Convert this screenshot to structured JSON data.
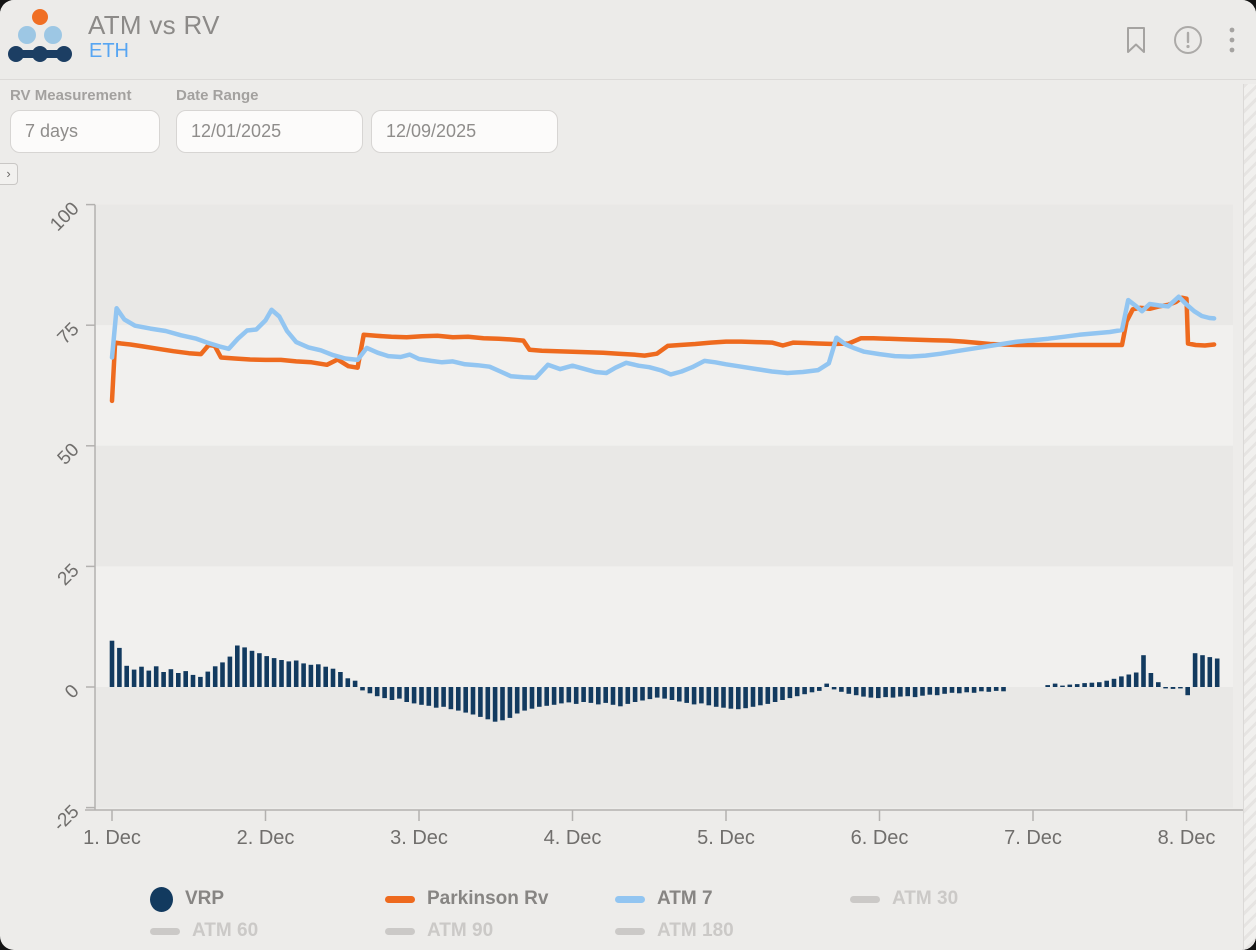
{
  "header": {
    "title": "ATM vs RV",
    "subtitle": "ETH"
  },
  "filters": {
    "rv_measurement": {
      "label": "RV Measurement",
      "value": "7 days"
    },
    "date_range": {
      "label": "Date Range",
      "start": "12/01/2025",
      "end": "12/09/2025"
    }
  },
  "collapse_arrow": "›",
  "colors": {
    "navy": "#123A5F",
    "orange": "#EE6A1E",
    "light_blue": "#92C5F1",
    "inactive_gray": "#CBC9C7",
    "band_dark": "#E9E8E6",
    "band_light": "#F1F0EE",
    "axis_line": "#B3B1AF",
    "tick_text": "#706E6C",
    "legend_active_text": "#878583",
    "legend_inactive_text": "#CBC9C7",
    "logo_orange": "#F06F24",
    "logo_blue": "#9DC7E4",
    "logo_navy": "#1C3E63",
    "icon_gray": "#A5A3A1"
  },
  "chart_data": {
    "type": "mixed",
    "title": "ATM vs RV",
    "x_ticks": [
      {
        "day": 1,
        "label": "1. Dec"
      },
      {
        "day": 2,
        "label": "2. Dec"
      },
      {
        "day": 3,
        "label": "3. Dec"
      },
      {
        "day": 4,
        "label": "4. Dec"
      },
      {
        "day": 5,
        "label": "5. Dec"
      },
      {
        "day": 6,
        "label": "6. Dec"
      },
      {
        "day": 7,
        "label": "7. Dec"
      },
      {
        "day": 8,
        "label": "8. Dec"
      }
    ],
    "y_ticks": [
      100,
      75,
      50,
      25,
      0,
      -25
    ],
    "ylim": [
      -25,
      100
    ],
    "xlim_days": [
      0.95,
      8.3
    ],
    "grid_bands": true,
    "series": [
      {
        "name": "VRP",
        "type": "bar",
        "color": "#123A5F",
        "start_day": 1.0,
        "day_step": 0.048,
        "values": [
          9.6,
          8.1,
          4.4,
          3.6,
          4.2,
          3.4,
          4.3,
          3.1,
          3.7,
          2.9,
          3.3,
          2.5,
          2.1,
          3.2,
          4.3,
          5.1,
          6.3,
          8.6,
          8.2,
          7.5,
          7.0,
          6.4,
          6.0,
          5.6,
          5.3,
          5.5,
          4.9,
          4.6,
          4.7,
          4.2,
          3.8,
          3.1,
          1.8,
          1.3,
          -0.7,
          -1.3,
          -1.9,
          -2.3,
          -2.7,
          -2.4,
          -3.1,
          -3.4,
          -3.7,
          -3.9,
          -4.3,
          -4.1,
          -4.6,
          -4.9,
          -5.3,
          -5.7,
          -6.2,
          -6.7,
          -7.2,
          -6.9,
          -6.4,
          -5.5,
          -4.9,
          -4.5,
          -4.1,
          -3.9,
          -3.7,
          -3.4,
          -3.2,
          -3.5,
          -3.1,
          -3.3,
          -3.6,
          -3.3,
          -3.7,
          -4.0,
          -3.5,
          -3.1,
          -2.8,
          -2.5,
          -2.2,
          -2.4,
          -2.7,
          -3.0,
          -3.3,
          -3.6,
          -3.4,
          -3.8,
          -4.1,
          -4.3,
          -4.5,
          -4.6,
          -4.4,
          -4.1,
          -3.8,
          -3.5,
          -3.1,
          -2.7,
          -2.3,
          -1.9,
          -1.5,
          -1.1,
          -0.8,
          0.7,
          -0.5,
          -1.0,
          -1.4,
          -1.7,
          -2.0,
          -2.2,
          -2.3,
          -2.1,
          -2.2,
          -2.0,
          -1.9,
          -2.1,
          -1.8,
          -1.6,
          -1.7,
          -1.4,
          -1.2,
          -1.3,
          -1.1,
          -1.2,
          -0.9,
          -1.0,
          -0.8,
          -0.9,
          null,
          null,
          null,
          null,
          null,
          0.4,
          0.7,
          0.3,
          0.5,
          0.6,
          0.8,
          0.9,
          1.0,
          1.3,
          1.7,
          2.2,
          2.6,
          3.0,
          6.6,
          2.9,
          1.0,
          -0.3,
          -0.4,
          -0.3,
          -1.7,
          7.0,
          6.6,
          6.2,
          5.9
        ]
      },
      {
        "name": "Parkinson Rv",
        "type": "line",
        "color": "#EE6A1E",
        "points": [
          [
            1.0,
            59.3
          ],
          [
            1.02,
            71.4
          ],
          [
            1.06,
            71.2
          ],
          [
            1.12,
            71.0
          ],
          [
            1.2,
            70.6
          ],
          [
            1.3,
            70.1
          ],
          [
            1.4,
            69.6
          ],
          [
            1.5,
            69.2
          ],
          [
            1.58,
            69.0
          ],
          [
            1.63,
            70.9
          ],
          [
            1.67,
            70.7
          ],
          [
            1.71,
            68.3
          ],
          [
            1.8,
            68.1
          ],
          [
            1.9,
            67.9
          ],
          [
            2.0,
            67.8
          ],
          [
            2.1,
            67.8
          ],
          [
            2.2,
            67.5
          ],
          [
            2.3,
            67.3
          ],
          [
            2.4,
            66.8
          ],
          [
            2.47,
            67.9
          ],
          [
            2.54,
            66.5
          ],
          [
            2.6,
            66.2
          ],
          [
            2.64,
            73.0
          ],
          [
            2.72,
            72.8
          ],
          [
            2.82,
            72.6
          ],
          [
            2.92,
            72.5
          ],
          [
            3.02,
            72.7
          ],
          [
            3.12,
            72.8
          ],
          [
            3.22,
            72.5
          ],
          [
            3.32,
            72.6
          ],
          [
            3.42,
            72.3
          ],
          [
            3.52,
            72.2
          ],
          [
            3.62,
            72.0
          ],
          [
            3.68,
            71.8
          ],
          [
            3.72,
            69.9
          ],
          [
            3.8,
            69.7
          ],
          [
            3.9,
            69.6
          ],
          [
            4.0,
            69.5
          ],
          [
            4.1,
            69.4
          ],
          [
            4.2,
            69.3
          ],
          [
            4.3,
            69.1
          ],
          [
            4.4,
            68.9
          ],
          [
            4.47,
            68.7
          ],
          [
            4.55,
            69.1
          ],
          [
            4.62,
            70.7
          ],
          [
            4.7,
            70.9
          ],
          [
            4.8,
            71.1
          ],
          [
            4.9,
            71.4
          ],
          [
            5.0,
            71.6
          ],
          [
            5.1,
            71.6
          ],
          [
            5.2,
            71.5
          ],
          [
            5.3,
            71.4
          ],
          [
            5.37,
            70.8
          ],
          [
            5.44,
            71.4
          ],
          [
            5.52,
            71.3
          ],
          [
            5.6,
            71.2
          ],
          [
            5.7,
            71.1
          ],
          [
            5.8,
            71.2
          ],
          [
            5.88,
            72.3
          ],
          [
            5.96,
            72.3
          ],
          [
            6.05,
            72.2
          ],
          [
            6.15,
            72.1
          ],
          [
            6.25,
            72.0
          ],
          [
            6.35,
            71.9
          ],
          [
            6.45,
            71.8
          ],
          [
            6.55,
            71.6
          ],
          [
            6.65,
            71.3
          ],
          [
            6.72,
            71.1
          ],
          [
            6.8,
            71.0
          ],
          [
            6.9,
            70.9
          ],
          [
            7.0,
            70.9
          ],
          [
            7.1,
            70.9
          ],
          [
            7.2,
            70.9
          ],
          [
            7.3,
            70.9
          ],
          [
            7.4,
            70.9
          ],
          [
            7.5,
            70.9
          ],
          [
            7.58,
            70.9
          ],
          [
            7.61,
            75.8
          ],
          [
            7.65,
            78.3
          ],
          [
            7.7,
            78.6
          ],
          [
            7.76,
            78.4
          ],
          [
            7.82,
            78.9
          ],
          [
            7.88,
            79.2
          ],
          [
            7.93,
            79.8
          ],
          [
            7.97,
            80.7
          ],
          [
            8.0,
            80.5
          ],
          [
            8.01,
            71.2
          ],
          [
            8.06,
            70.9
          ],
          [
            8.12,
            70.8
          ],
          [
            8.18,
            71.0
          ]
        ]
      },
      {
        "name": "ATM 7",
        "type": "line",
        "color": "#92C5F1",
        "points": [
          [
            1.0,
            68.3
          ],
          [
            1.03,
            78.5
          ],
          [
            1.08,
            76.2
          ],
          [
            1.15,
            74.9
          ],
          [
            1.25,
            74.3
          ],
          [
            1.35,
            73.8
          ],
          [
            1.45,
            72.9
          ],
          [
            1.55,
            72.2
          ],
          [
            1.62,
            71.4
          ],
          [
            1.7,
            70.6
          ],
          [
            1.76,
            70.1
          ],
          [
            1.82,
            72.2
          ],
          [
            1.88,
            73.9
          ],
          [
            1.94,
            74.1
          ],
          [
            2.0,
            76.0
          ],
          [
            2.04,
            78.2
          ],
          [
            2.09,
            76.8
          ],
          [
            2.14,
            73.8
          ],
          [
            2.2,
            71.5
          ],
          [
            2.28,
            70.4
          ],
          [
            2.36,
            69.8
          ],
          [
            2.44,
            68.8
          ],
          [
            2.52,
            68.1
          ],
          [
            2.6,
            67.8
          ],
          [
            2.66,
            70.3
          ],
          [
            2.73,
            69.3
          ],
          [
            2.8,
            68.6
          ],
          [
            2.88,
            68.4
          ],
          [
            2.94,
            68.9
          ],
          [
            3.0,
            68.0
          ],
          [
            3.08,
            67.6
          ],
          [
            3.15,
            67.3
          ],
          [
            3.22,
            67.5
          ],
          [
            3.3,
            66.9
          ],
          [
            3.38,
            66.7
          ],
          [
            3.46,
            66.4
          ],
          [
            3.53,
            65.4
          ],
          [
            3.6,
            64.4
          ],
          [
            3.68,
            64.2
          ],
          [
            3.76,
            64.1
          ],
          [
            3.84,
            66.8
          ],
          [
            3.92,
            65.9
          ],
          [
            4.0,
            66.6
          ],
          [
            4.08,
            65.9
          ],
          [
            4.15,
            65.3
          ],
          [
            4.22,
            65.1
          ],
          [
            4.28,
            66.2
          ],
          [
            4.35,
            67.2
          ],
          [
            4.43,
            66.6
          ],
          [
            4.5,
            66.3
          ],
          [
            4.58,
            65.6
          ],
          [
            4.64,
            64.8
          ],
          [
            4.71,
            65.4
          ],
          [
            4.78,
            66.3
          ],
          [
            4.86,
            67.6
          ],
          [
            4.93,
            67.3
          ],
          [
            5.0,
            66.9
          ],
          [
            5.1,
            66.4
          ],
          [
            5.2,
            65.9
          ],
          [
            5.3,
            65.4
          ],
          [
            5.4,
            65.1
          ],
          [
            5.5,
            65.3
          ],
          [
            5.6,
            65.7
          ],
          [
            5.67,
            67.1
          ],
          [
            5.72,
            72.4
          ],
          [
            5.78,
            71.0
          ],
          [
            5.84,
            70.2
          ],
          [
            5.9,
            69.5
          ],
          [
            6.0,
            69.0
          ],
          [
            6.1,
            68.6
          ],
          [
            6.2,
            68.5
          ],
          [
            6.3,
            68.7
          ],
          [
            6.4,
            69.1
          ],
          [
            6.5,
            69.6
          ],
          [
            6.6,
            70.1
          ],
          [
            6.7,
            70.6
          ],
          [
            6.8,
            71.1
          ],
          [
            6.9,
            71.6
          ],
          [
            7.0,
            71.9
          ],
          [
            7.1,
            72.2
          ],
          [
            7.2,
            72.6
          ],
          [
            7.3,
            73.0
          ],
          [
            7.4,
            73.3
          ],
          [
            7.5,
            73.6
          ],
          [
            7.58,
            74.0
          ],
          [
            7.62,
            80.2
          ],
          [
            7.67,
            79.0
          ],
          [
            7.71,
            77.9
          ],
          [
            7.76,
            79.4
          ],
          [
            7.82,
            79.1
          ],
          [
            7.88,
            78.9
          ],
          [
            7.95,
            80.9
          ],
          [
            8.0,
            79.3
          ],
          [
            8.05,
            77.9
          ],
          [
            8.1,
            76.9
          ],
          [
            8.15,
            76.5
          ],
          [
            8.18,
            76.4
          ]
        ]
      }
    ],
    "legend": [
      {
        "label": "VRP",
        "marker": "dot",
        "color": "#123A5F",
        "active": true
      },
      {
        "label": "Parkinson Rv",
        "marker": "dash",
        "color": "#EE6A1E",
        "active": true
      },
      {
        "label": "ATM 7",
        "marker": "dash",
        "color": "#92C5F1",
        "active": true
      },
      {
        "label": "ATM 30",
        "marker": "dash",
        "color": "#CBC9C7",
        "active": false
      },
      {
        "label": "ATM 60",
        "marker": "dash",
        "color": "#CBC9C7",
        "active": false
      },
      {
        "label": "ATM 90",
        "marker": "dash",
        "color": "#CBC9C7",
        "active": false
      },
      {
        "label": "ATM 180",
        "marker": "dash",
        "color": "#CBC9C7",
        "active": false
      }
    ]
  }
}
